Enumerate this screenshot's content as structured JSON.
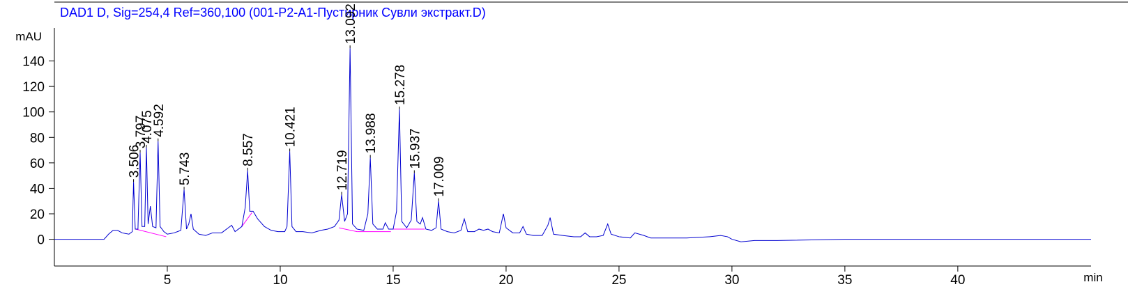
{
  "chart_data": {
    "type": "line",
    "title": "DAD1 D, Sig=254,4 Ref=360,100 (001-P2-A1-Пустирник Сувли экстракт.D)",
    "y_label": "mAU",
    "x_label": "min",
    "color": "#0000d0",
    "baseline_color": "#ff00ff",
    "xlim": [
      0,
      45.9
    ],
    "ylim": [
      -21,
      166
    ],
    "xticks": [
      5,
      10,
      15,
      20,
      25,
      30,
      35,
      40
    ],
    "yticks": [
      0,
      20,
      40,
      60,
      80,
      100,
      120,
      140
    ],
    "x": [
      0,
      2.2,
      2.4,
      2.6,
      2.8,
      3.0,
      3.3,
      3.45,
      3.506,
      3.58,
      3.7,
      3.797,
      3.88,
      4.0,
      4.075,
      4.15,
      4.25,
      4.35,
      4.5,
      4.592,
      4.68,
      4.85,
      5.0,
      5.3,
      5.6,
      5.743,
      5.85,
      5.95,
      6.05,
      6.15,
      6.4,
      6.7,
      7.0,
      7.4,
      7.7,
      7.85,
      8.0,
      8.3,
      8.45,
      8.557,
      8.65,
      8.8,
      9.0,
      9.3,
      9.6,
      9.9,
      10.2,
      10.3,
      10.421,
      10.52,
      10.7,
      11.0,
      11.4,
      11.8,
      12.1,
      12.4,
      12.6,
      12.719,
      12.85,
      12.98,
      13.092,
      13.2,
      13.4,
      13.7,
      13.88,
      13.988,
      14.1,
      14.3,
      14.55,
      14.65,
      14.8,
      15.0,
      15.15,
      15.278,
      15.38,
      15.6,
      15.8,
      15.937,
      16.05,
      16.2,
      16.3,
      16.45,
      16.7,
      16.9,
      17.009,
      17.12,
      17.4,
      17.7,
      18.0,
      18.15,
      18.3,
      18.6,
      18.8,
      19.0,
      19.2,
      19.4,
      19.7,
      19.88,
      20.0,
      20.3,
      20.6,
      20.75,
      20.9,
      21.2,
      21.6,
      21.85,
      21.95,
      22.1,
      22.5,
      23.0,
      23.3,
      23.5,
      23.7,
      24.0,
      24.3,
      24.5,
      24.65,
      25.0,
      25.5,
      25.7,
      25.9,
      26.1,
      26.4,
      27.0,
      28.0,
      29.0,
      29.5,
      29.8,
      30.0,
      30.4,
      31.0,
      32.0,
      35.0,
      40.0,
      45.9
    ],
    "values": [
      0,
      0,
      4,
      7,
      7,
      5,
      4,
      6,
      45,
      8,
      8,
      68,
      10,
      10,
      72,
      12,
      26,
      10,
      9,
      77,
      10,
      6,
      4,
      5,
      7,
      39,
      8,
      12,
      20,
      8,
      4,
      3,
      5,
      5,
      9,
      11,
      6,
      10,
      25,
      54,
      22,
      22,
      16,
      10,
      7,
      6,
      6,
      10,
      69,
      10,
      6,
      6,
      5,
      7,
      8,
      10,
      15,
      35,
      14,
      20,
      150,
      12,
      8,
      7,
      20,
      64,
      12,
      8,
      8,
      13,
      8,
      8,
      22,
      102,
      14,
      9,
      15,
      52,
      14,
      12,
      17,
      8,
      7,
      9,
      30,
      8,
      6,
      5,
      7,
      16,
      6,
      6,
      8,
      7,
      8,
      6,
      5,
      20,
      9,
      5,
      5,
      10,
      4,
      3,
      3,
      11,
      17,
      4,
      3,
      2,
      2,
      5,
      2,
      2,
      3,
      12,
      4,
      2,
      1,
      5,
      4,
      3,
      1,
      1,
      1,
      2,
      3,
      2,
      0,
      -2,
      -1,
      -1,
      0,
      0,
      0
    ],
    "peaks": {
      "x": [
        3.506,
        3.797,
        4.075,
        4.592,
        5.743,
        8.557,
        10.421,
        12.719,
        13.092,
        13.988,
        15.278,
        15.937,
        17.009
      ],
      "y": [
        45,
        68,
        72,
        77,
        39,
        54,
        69,
        35,
        150,
        64,
        102,
        52,
        30
      ]
    },
    "baselines": [
      {
        "x": [
          3.6,
          4.95
        ],
        "y": [
          8,
          2
        ]
      },
      {
        "x": [
          8.3,
          8.75
        ],
        "y": [
          10,
          21
        ]
      },
      {
        "x": [
          12.6,
          13.4
        ],
        "y": [
          9,
          6
        ]
      },
      {
        "x": [
          13.4,
          14.9
        ],
        "y": [
          6,
          6
        ]
      },
      {
        "x": [
          14.9,
          16.4
        ],
        "y": [
          8,
          8
        ]
      }
    ]
  }
}
